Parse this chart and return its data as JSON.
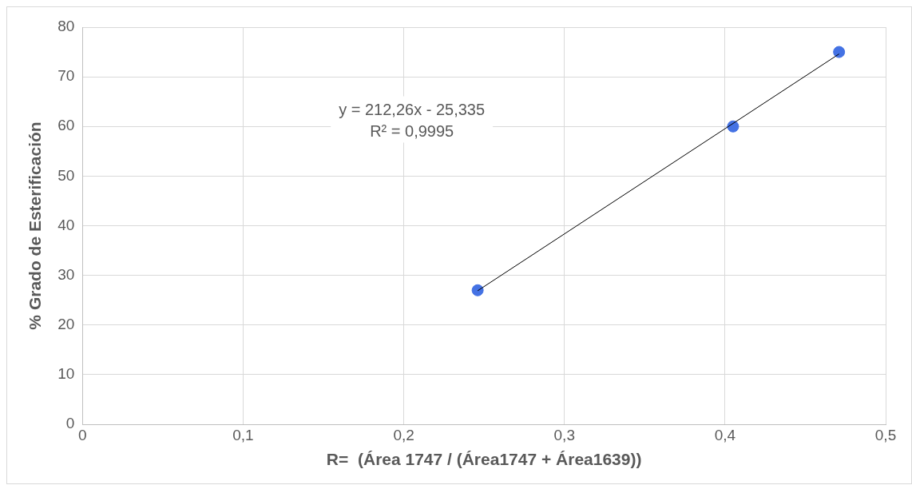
{
  "chart_data": {
    "type": "scatter",
    "xlabel": "R=  (Área 1747 / (Área1747 + Área1639))",
    "ylabel": "% Grado de Esterificación",
    "xlim": [
      0,
      0.5
    ],
    "xticks": [
      {
        "value": 0,
        "label": "0"
      },
      {
        "value": 0.1,
        "label": "0,1"
      },
      {
        "value": 0.2,
        "label": "0,2"
      },
      {
        "value": 0.3,
        "label": "0,3"
      },
      {
        "value": 0.4,
        "label": "0,4"
      },
      {
        "value": 0.5,
        "label": "0,5"
      }
    ],
    "ylim": [
      0,
      80
    ],
    "yticks": [
      0,
      10,
      20,
      30,
      40,
      50,
      60,
      70,
      80
    ],
    "grid": true,
    "legend": false,
    "marker": "circle",
    "series": [
      {
        "type": "scatter",
        "color": "#4472e4",
        "x": [
          0.246,
          0.405,
          0.471
        ],
        "values": [
          27,
          60,
          75
        ]
      },
      {
        "type": "line",
        "color": "#000000",
        "marker": "none",
        "x": [
          0.246,
          0.471
        ],
        "values": [
          26.9,
          74.6
        ]
      }
    ],
    "annotations": [
      "y = 212,26x - 25,335",
      "R² = 0,9995"
    ]
  }
}
